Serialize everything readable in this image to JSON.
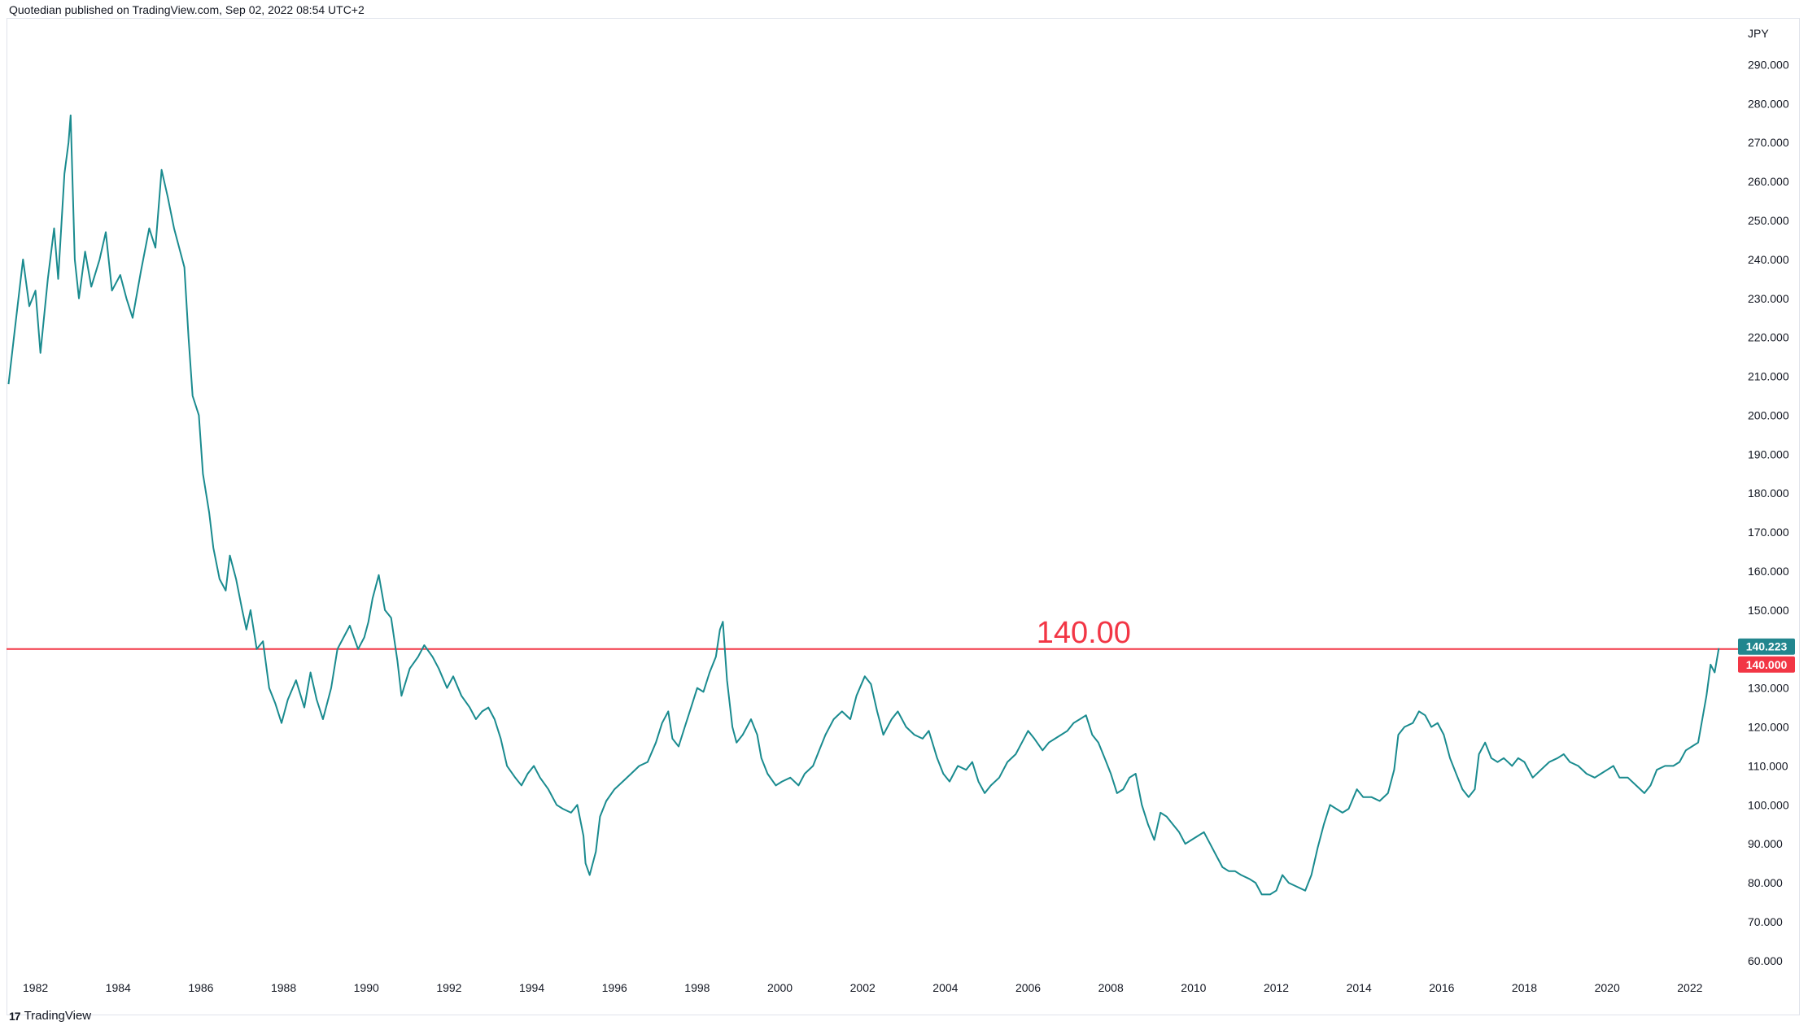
{
  "header": {
    "publish_text": "Quotedian published on TradingView.com, Sep 02, 2022 08:54 UTC+2"
  },
  "footer": {
    "brand_label": "TradingView",
    "brand_logo": "17"
  },
  "chart_data": {
    "type": "line",
    "currency_label": "JPY",
    "title": "",
    "xlabel": "",
    "ylabel": "",
    "ylim": [
      56,
      302
    ],
    "xlim": [
      1981.3,
      2023.4
    ],
    "grid": false,
    "series_color": "#1a8b8f",
    "x_ticks": [
      "1982",
      "1984",
      "1986",
      "1988",
      "1990",
      "1992",
      "1994",
      "1996",
      "1998",
      "2000",
      "2002",
      "2004",
      "2006",
      "2008",
      "2010",
      "2012",
      "2014",
      "2016",
      "2018",
      "2020",
      "2022"
    ],
    "y_ticks": [
      "60.000",
      "70.000",
      "80.000",
      "90.000",
      "100.000",
      "110.000",
      "120.000",
      "130.000",
      "140.000",
      "150.000",
      "160.000",
      "170.000",
      "180.000",
      "190.000",
      "200.000",
      "210.000",
      "220.000",
      "230.000",
      "240.000",
      "250.000",
      "260.000",
      "270.000",
      "280.000",
      "290.000"
    ],
    "series": [
      {
        "values": [
          [
            1981.35,
            208
          ],
          [
            1981.5,
            222
          ],
          [
            1981.7,
            240
          ],
          [
            1981.85,
            228
          ],
          [
            1982.0,
            232
          ],
          [
            1982.12,
            216
          ],
          [
            1982.3,
            235
          ],
          [
            1982.45,
            248
          ],
          [
            1982.55,
            235
          ],
          [
            1982.7,
            262
          ],
          [
            1982.8,
            270
          ],
          [
            1982.85,
            277
          ],
          [
            1982.95,
            240
          ],
          [
            1983.05,
            230
          ],
          [
            1983.2,
            242
          ],
          [
            1983.35,
            233
          ],
          [
            1983.55,
            240
          ],
          [
            1983.7,
            247
          ],
          [
            1983.85,
            232
          ],
          [
            1984.05,
            236
          ],
          [
            1984.2,
            230
          ],
          [
            1984.35,
            225
          ],
          [
            1984.55,
            237
          ],
          [
            1984.75,
            248
          ],
          [
            1984.9,
            243
          ],
          [
            1985.05,
            263
          ],
          [
            1985.2,
            256
          ],
          [
            1985.35,
            248
          ],
          [
            1985.5,
            242
          ],
          [
            1985.6,
            238
          ],
          [
            1985.7,
            220
          ],
          [
            1985.8,
            205
          ],
          [
            1985.95,
            200
          ],
          [
            1986.05,
            185
          ],
          [
            1986.2,
            175
          ],
          [
            1986.3,
            166
          ],
          [
            1986.45,
            158
          ],
          [
            1986.6,
            155
          ],
          [
            1986.7,
            164
          ],
          [
            1986.85,
            158
          ],
          [
            1987.0,
            150
          ],
          [
            1987.1,
            145
          ],
          [
            1987.2,
            150
          ],
          [
            1987.35,
            140
          ],
          [
            1987.5,
            142
          ],
          [
            1987.65,
            130
          ],
          [
            1987.8,
            126
          ],
          [
            1987.95,
            121
          ],
          [
            1988.1,
            127
          ],
          [
            1988.3,
            132
          ],
          [
            1988.5,
            125
          ],
          [
            1988.65,
            134
          ],
          [
            1988.8,
            127
          ],
          [
            1988.95,
            122
          ],
          [
            1989.15,
            130
          ],
          [
            1989.3,
            140
          ],
          [
            1989.45,
            143
          ],
          [
            1989.6,
            146
          ],
          [
            1989.8,
            140
          ],
          [
            1989.95,
            143
          ],
          [
            1990.05,
            147
          ],
          [
            1990.15,
            153
          ],
          [
            1990.3,
            159
          ],
          [
            1990.45,
            150
          ],
          [
            1990.6,
            148
          ],
          [
            1990.75,
            137
          ],
          [
            1990.85,
            128
          ],
          [
            1991.05,
            135
          ],
          [
            1991.25,
            138
          ],
          [
            1991.4,
            141
          ],
          [
            1991.6,
            138
          ],
          [
            1991.75,
            135
          ],
          [
            1991.95,
            130
          ],
          [
            1992.1,
            133
          ],
          [
            1992.3,
            128
          ],
          [
            1992.5,
            125
          ],
          [
            1992.65,
            122
          ],
          [
            1992.8,
            124
          ],
          [
            1992.95,
            125
          ],
          [
            1993.1,
            122
          ],
          [
            1993.25,
            117
          ],
          [
            1993.4,
            110
          ],
          [
            1993.6,
            107
          ],
          [
            1993.75,
            105
          ],
          [
            1993.9,
            108
          ],
          [
            1994.05,
            110
          ],
          [
            1994.2,
            107
          ],
          [
            1994.4,
            104
          ],
          [
            1994.6,
            100
          ],
          [
            1994.75,
            99
          ],
          [
            1994.95,
            98
          ],
          [
            1995.1,
            100
          ],
          [
            1995.25,
            92
          ],
          [
            1995.3,
            85
          ],
          [
            1995.4,
            82
          ],
          [
            1995.55,
            88
          ],
          [
            1995.65,
            97
          ],
          [
            1995.8,
            101
          ],
          [
            1996.0,
            104
          ],
          [
            1996.2,
            106
          ],
          [
            1996.4,
            108
          ],
          [
            1996.6,
            110
          ],
          [
            1996.8,
            111
          ],
          [
            1997.0,
            116
          ],
          [
            1997.15,
            121
          ],
          [
            1997.3,
            124
          ],
          [
            1997.4,
            117
          ],
          [
            1997.55,
            115
          ],
          [
            1997.7,
            120
          ],
          [
            1997.85,
            125
          ],
          [
            1998.0,
            130
          ],
          [
            1998.15,
            129
          ],
          [
            1998.3,
            134
          ],
          [
            1998.45,
            138
          ],
          [
            1998.55,
            145
          ],
          [
            1998.62,
            147
          ],
          [
            1998.72,
            132
          ],
          [
            1998.85,
            120
          ],
          [
            1998.95,
            116
          ],
          [
            1999.1,
            118
          ],
          [
            1999.3,
            122
          ],
          [
            1999.45,
            118
          ],
          [
            1999.55,
            112
          ],
          [
            1999.7,
            108
          ],
          [
            1999.9,
            105
          ],
          [
            2000.05,
            106
          ],
          [
            2000.25,
            107
          ],
          [
            2000.45,
            105
          ],
          [
            2000.6,
            108
          ],
          [
            2000.8,
            110
          ],
          [
            2000.95,
            114
          ],
          [
            2001.1,
            118
          ],
          [
            2001.3,
            122
          ],
          [
            2001.5,
            124
          ],
          [
            2001.7,
            122
          ],
          [
            2001.85,
            128
          ],
          [
            2002.05,
            133
          ],
          [
            2002.2,
            131
          ],
          [
            2002.35,
            124
          ],
          [
            2002.5,
            118
          ],
          [
            2002.7,
            122
          ],
          [
            2002.85,
            124
          ],
          [
            2003.05,
            120
          ],
          [
            2003.25,
            118
          ],
          [
            2003.45,
            117
          ],
          [
            2003.6,
            119
          ],
          [
            2003.8,
            112
          ],
          [
            2003.95,
            108
          ],
          [
            2004.1,
            106
          ],
          [
            2004.3,
            110
          ],
          [
            2004.5,
            109
          ],
          [
            2004.65,
            111
          ],
          [
            2004.8,
            106
          ],
          [
            2004.95,
            103
          ],
          [
            2005.1,
            105
          ],
          [
            2005.3,
            107
          ],
          [
            2005.5,
            111
          ],
          [
            2005.7,
            113
          ],
          [
            2005.85,
            116
          ],
          [
            2006.0,
            119
          ],
          [
            2006.15,
            117
          ],
          [
            2006.35,
            114
          ],
          [
            2006.5,
            116
          ],
          [
            2006.65,
            117
          ],
          [
            2006.8,
            118
          ],
          [
            2006.95,
            119
          ],
          [
            2007.1,
            121
          ],
          [
            2007.25,
            122
          ],
          [
            2007.4,
            123
          ],
          [
            2007.55,
            118
          ],
          [
            2007.7,
            116
          ],
          [
            2007.85,
            112
          ],
          [
            2008.0,
            108
          ],
          [
            2008.15,
            103
          ],
          [
            2008.3,
            104
          ],
          [
            2008.45,
            107
          ],
          [
            2008.6,
            108
          ],
          [
            2008.75,
            100
          ],
          [
            2008.9,
            95
          ],
          [
            2009.05,
            91
          ],
          [
            2009.2,
            98
          ],
          [
            2009.35,
            97
          ],
          [
            2009.5,
            95
          ],
          [
            2009.65,
            93
          ],
          [
            2009.8,
            90
          ],
          [
            2009.95,
            91
          ],
          [
            2010.1,
            92
          ],
          [
            2010.25,
            93
          ],
          [
            2010.4,
            90
          ],
          [
            2010.55,
            87
          ],
          [
            2010.7,
            84
          ],
          [
            2010.85,
            83
          ],
          [
            2011.0,
            83
          ],
          [
            2011.15,
            82
          ],
          [
            2011.35,
            81
          ],
          [
            2011.5,
            80
          ],
          [
            2011.65,
            77
          ],
          [
            2011.85,
            77
          ],
          [
            2012.0,
            78
          ],
          [
            2012.15,
            82
          ],
          [
            2012.3,
            80
          ],
          [
            2012.5,
            79
          ],
          [
            2012.7,
            78
          ],
          [
            2012.85,
            82
          ],
          [
            2013.0,
            89
          ],
          [
            2013.15,
            95
          ],
          [
            2013.3,
            100
          ],
          [
            2013.45,
            99
          ],
          [
            2013.6,
            98
          ],
          [
            2013.75,
            99
          ],
          [
            2013.95,
            104
          ],
          [
            2014.1,
            102
          ],
          [
            2014.3,
            102
          ],
          [
            2014.5,
            101
          ],
          [
            2014.7,
            103
          ],
          [
            2014.85,
            109
          ],
          [
            2014.95,
            118
          ],
          [
            2015.1,
            120
          ],
          [
            2015.3,
            121
          ],
          [
            2015.45,
            124
          ],
          [
            2015.6,
            123
          ],
          [
            2015.75,
            120
          ],
          [
            2015.9,
            121
          ],
          [
            2016.05,
            118
          ],
          [
            2016.2,
            112
          ],
          [
            2016.35,
            108
          ],
          [
            2016.5,
            104
          ],
          [
            2016.65,
            102
          ],
          [
            2016.8,
            104
          ],
          [
            2016.9,
            113
          ],
          [
            2017.05,
            116
          ],
          [
            2017.2,
            112
          ],
          [
            2017.35,
            111
          ],
          [
            2017.5,
            112
          ],
          [
            2017.7,
            110
          ],
          [
            2017.85,
            112
          ],
          [
            2018.0,
            111
          ],
          [
            2018.2,
            107
          ],
          [
            2018.4,
            109
          ],
          [
            2018.6,
            111
          ],
          [
            2018.8,
            112
          ],
          [
            2018.95,
            113
          ],
          [
            2019.1,
            111
          ],
          [
            2019.3,
            110
          ],
          [
            2019.5,
            108
          ],
          [
            2019.7,
            107
          ],
          [
            2019.85,
            108
          ],
          [
            2020.0,
            109
          ],
          [
            2020.15,
            110
          ],
          [
            2020.3,
            107
          ],
          [
            2020.5,
            107
          ],
          [
            2020.7,
            105
          ],
          [
            2020.9,
            103
          ],
          [
            2021.05,
            105
          ],
          [
            2021.2,
            109
          ],
          [
            2021.4,
            110
          ],
          [
            2021.6,
            110
          ],
          [
            2021.75,
            111
          ],
          [
            2021.9,
            114
          ],
          [
            2022.05,
            115
          ],
          [
            2022.2,
            116
          ],
          [
            2022.3,
            122
          ],
          [
            2022.4,
            128
          ],
          [
            2022.5,
            136
          ],
          [
            2022.6,
            134
          ],
          [
            2022.7,
            140.223
          ]
        ]
      }
    ],
    "last_price": {
      "label": "140.223",
      "value": 140.223,
      "color": "#22868e"
    },
    "horizontal_line": {
      "label": "140.000",
      "value": 140.0,
      "color": "#f23645",
      "annotation": "140.00",
      "annotation_x": 2006.2
    }
  }
}
